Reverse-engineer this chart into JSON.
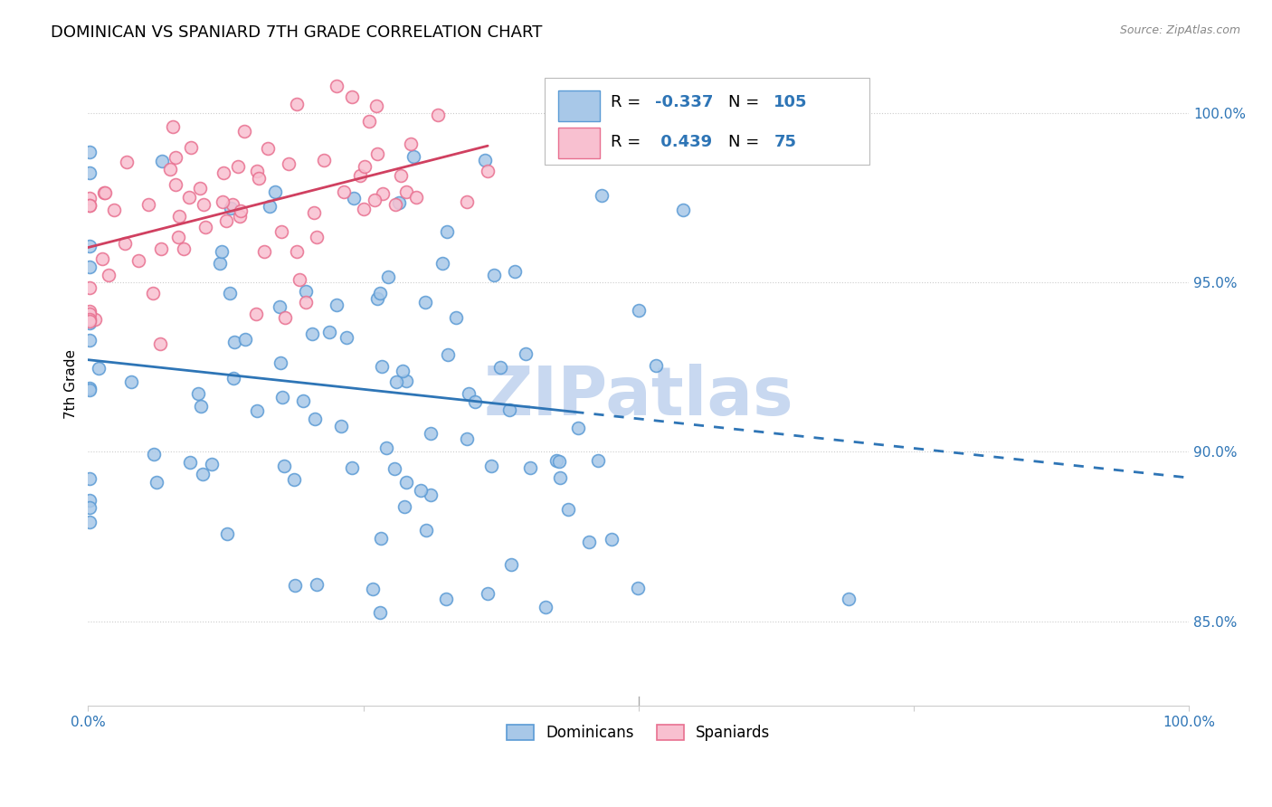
{
  "title": "DOMINICAN VS SPANIARD 7TH GRADE CORRELATION CHART",
  "source": "Source: ZipAtlas.com",
  "ylabel": "7th Grade",
  "ylabel_right_ticks": [
    "85.0%",
    "90.0%",
    "95.0%",
    "100.0%"
  ],
  "ylabel_right_vals": [
    0.85,
    0.9,
    0.95,
    1.0
  ],
  "watermark": "ZIPatlas",
  "watermark_color": "#c8d8f0",
  "blue_r": -0.337,
  "blue_n": 105,
  "pink_r": 0.439,
  "pink_n": 75,
  "blue_color": "#a8c8e8",
  "blue_edge_color": "#5b9bd5",
  "pink_color": "#f8c0d0",
  "pink_edge_color": "#e87090",
  "blue_line_color": "#2e75b6",
  "pink_line_color": "#d04060",
  "xmin": 0.0,
  "xmax": 1.0,
  "ymin": 0.825,
  "ymax": 1.015,
  "legend_r_blue": "-0.337",
  "legend_n_blue": "105",
  "legend_r_pink": "0.439",
  "legend_n_pink": "75",
  "legend_text_color": "#2e75b6",
  "legend_label_color": "black"
}
